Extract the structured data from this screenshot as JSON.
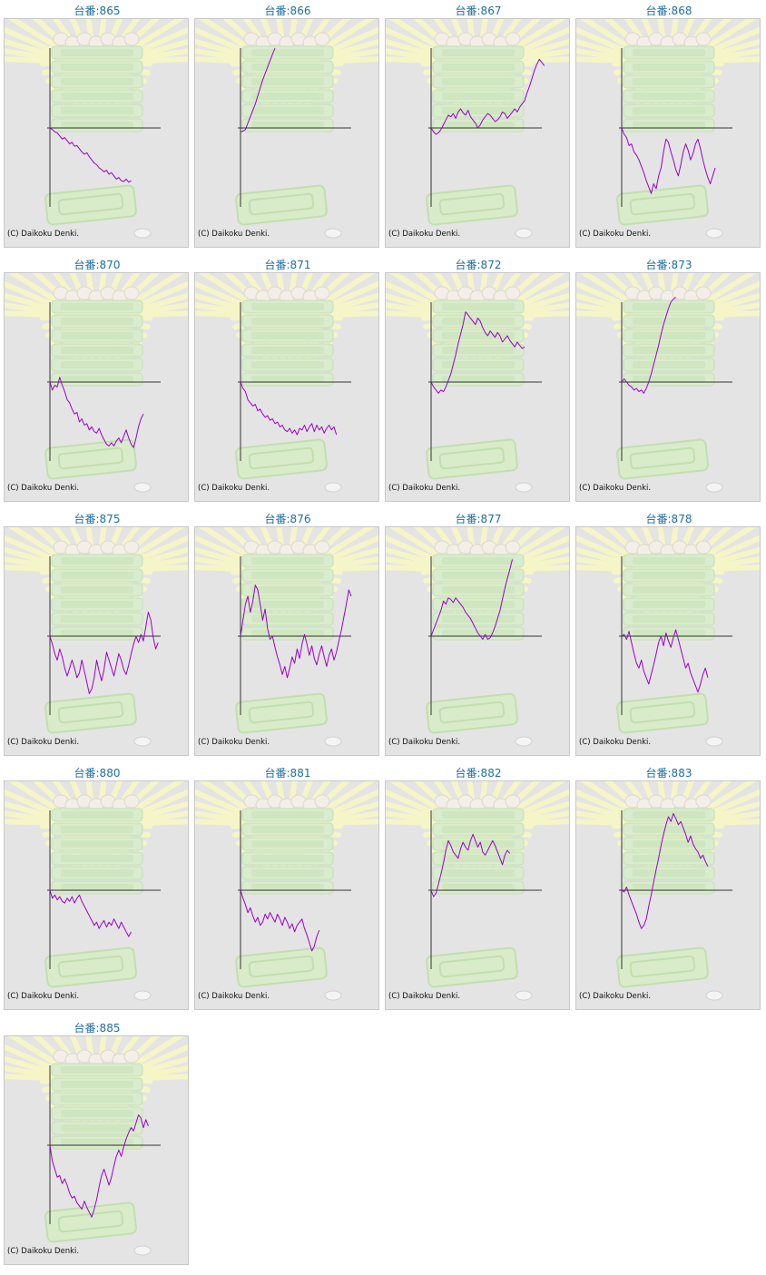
{
  "copyright": "(C) Daikoku Denki.",
  "colors": {
    "line": "#9900cc",
    "axis": "#333333",
    "title": "#1d6fa5",
    "panel": "#e4e4e4"
  },
  "chart_data": [
    {
      "type": "line",
      "title": "台番:865",
      "ylim": [
        -100,
        100
      ],
      "series": [
        {
          "values": [
            0,
            -2,
            -5,
            -6,
            -10,
            -14,
            -12,
            -16,
            -20,
            -18,
            -23,
            -22,
            -26,
            -30,
            -33,
            -31,
            -36,
            -40,
            -44,
            -46,
            -50,
            -52,
            -55,
            -53,
            -58,
            -56,
            -60,
            -64,
            -62,
            -66,
            -67,
            -64,
            -68,
            -66
          ]
        }
      ]
    },
    {
      "type": "line",
      "title": "台番:866",
      "ylim": [
        -100,
        100
      ],
      "series": [
        {
          "values": [
            -5,
            -4,
            -2,
            6,
            14,
            22,
            30,
            40,
            50,
            60,
            68,
            76,
            84,
            92,
            100
          ]
        }
      ]
    },
    {
      "type": "line",
      "title": "台番:867",
      "ylim": [
        -100,
        100
      ],
      "series": [
        {
          "values": [
            0,
            -5,
            -8,
            -6,
            -2,
            4,
            10,
            16,
            14,
            18,
            12,
            20,
            24,
            19,
            16,
            22,
            14,
            10,
            6,
            0,
            4,
            10,
            14,
            18,
            16,
            12,
            8,
            10,
            14,
            20,
            18,
            12,
            16,
            20,
            24,
            20,
            26,
            30,
            34,
            44,
            52,
            62,
            72,
            80,
            86,
            82,
            78
          ]
        }
      ]
    },
    {
      "type": "line",
      "title": "台番:868",
      "ylim": [
        -100,
        100
      ],
      "series": [
        {
          "values": [
            0,
            -8,
            -12,
            -22,
            -20,
            -30,
            -34,
            -40,
            -48,
            -56,
            -66,
            -74,
            -82,
            -70,
            -76,
            -60,
            -50,
            -30,
            -14,
            -18,
            -30,
            -40,
            -52,
            -60,
            -46,
            -30,
            -20,
            -28,
            -40,
            -32,
            -20,
            -14,
            -26,
            -40,
            -52,
            -62,
            -70,
            -60,
            -50
          ]
        }
      ]
    },
    {
      "type": "line",
      "title": "台番:870",
      "ylim": [
        -100,
        100
      ],
      "series": [
        {
          "values": [
            0,
            -10,
            -4,
            -6,
            6,
            -4,
            -12,
            -22,
            -26,
            -34,
            -40,
            -38,
            -50,
            -46,
            -54,
            -52,
            -60,
            -56,
            -62,
            -64,
            -58,
            -66,
            -72,
            -78,
            -80,
            -76,
            -80,
            -74,
            -70,
            -76,
            -68,
            -60,
            -70,
            -78,
            -82,
            -70,
            -56,
            -46,
            -40
          ]
        }
      ]
    },
    {
      "type": "line",
      "title": "台番:871",
      "ylim": [
        -100,
        100
      ],
      "series": [
        {
          "values": [
            0,
            -8,
            -12,
            -22,
            -26,
            -30,
            -28,
            -36,
            -34,
            -40,
            -44,
            -42,
            -48,
            -46,
            -52,
            -50,
            -56,
            -54,
            -60,
            -62,
            -58,
            -64,
            -60,
            -66,
            -58,
            -60,
            -54,
            -62,
            -56,
            -52,
            -62,
            -54,
            -60,
            -56,
            -64,
            -58,
            -54,
            -60,
            -56,
            -66
          ]
        }
      ]
    },
    {
      "type": "line",
      "title": "台番:872",
      "ylim": [
        -100,
        100
      ],
      "series": [
        {
          "values": [
            0,
            -6,
            -10,
            -14,
            -10,
            -12,
            -6,
            2,
            10,
            22,
            34,
            48,
            60,
            72,
            88,
            84,
            80,
            76,
            72,
            80,
            76,
            68,
            62,
            58,
            64,
            60,
            56,
            62,
            58,
            50,
            54,
            58,
            52,
            48,
            44,
            50,
            46,
            42,
            44
          ]
        }
      ]
    },
    {
      "type": "line",
      "title": "台番:873",
      "ylim": [
        -100,
        100
      ],
      "series": [
        {
          "values": [
            0,
            4,
            0,
            -4,
            -6,
            -10,
            -8,
            -12,
            -10,
            -14,
            -8,
            0,
            10,
            22,
            34,
            46,
            60,
            72,
            82,
            92,
            100,
            104,
            106
          ]
        }
      ]
    },
    {
      "type": "line",
      "title": "台番:875",
      "ylim": [
        -100,
        100
      ],
      "series": [
        {
          "values": [
            0,
            -10,
            -22,
            -30,
            -16,
            -26,
            -40,
            -50,
            -40,
            -30,
            -40,
            -52,
            -46,
            -30,
            -44,
            -58,
            -72,
            -66,
            -52,
            -30,
            -44,
            -56,
            -42,
            -20,
            -30,
            -40,
            -50,
            -36,
            -22,
            -30,
            -42,
            -48,
            -36,
            -22,
            -10,
            0,
            -8,
            2,
            -6,
            12,
            30,
            20,
            -2,
            -16,
            -8
          ]
        }
      ]
    },
    {
      "type": "line",
      "title": "台番:876",
      "ylim": [
        -100,
        100
      ],
      "series": [
        {
          "values": [
            0,
            20,
            40,
            50,
            30,
            44,
            64,
            58,
            40,
            20,
            34,
            10,
            -4,
            0,
            -14,
            -26,
            -36,
            -48,
            -38,
            -52,
            -40,
            -26,
            -34,
            -16,
            -28,
            -10,
            2,
            -10,
            -24,
            -12,
            -28,
            -36,
            -22,
            -12,
            -26,
            -38,
            -24,
            -16,
            -30,
            -20,
            -6,
            8,
            24,
            40,
            58,
            50
          ]
        }
      ]
    },
    {
      "type": "line",
      "title": "台番:877",
      "ylim": [
        -100,
        100
      ],
      "series": [
        {
          "values": [
            0,
            8,
            16,
            24,
            32,
            44,
            40,
            48,
            46,
            42,
            48,
            44,
            40,
            36,
            30,
            26,
            22,
            16,
            10,
            4,
            0,
            -4,
            2,
            -4,
            -2,
            4,
            12,
            22,
            32,
            46,
            60,
            72,
            84,
            96
          ]
        }
      ]
    },
    {
      "type": "line",
      "title": "台番:878",
      "ylim": [
        -100,
        100
      ],
      "series": [
        {
          "values": [
            0,
            2,
            -4,
            6,
            -8,
            -22,
            -34,
            -40,
            -30,
            -44,
            -52,
            -60,
            -48,
            -36,
            -22,
            -8,
            0,
            -12,
            4,
            -6,
            -14,
            -2,
            8,
            -4,
            -16,
            -28,
            -40,
            -34,
            -46,
            -54,
            -62,
            -70,
            -60,
            -48,
            -40,
            -52
          ]
        }
      ]
    },
    {
      "type": "line",
      "title": "台番:880",
      "ylim": [
        -100,
        100
      ],
      "series": [
        {
          "values": [
            0,
            -10,
            -6,
            -12,
            -8,
            -14,
            -16,
            -10,
            -14,
            -8,
            -16,
            -10,
            -6,
            -14,
            -20,
            -26,
            -32,
            -38,
            -44,
            -40,
            -48,
            -42,
            -38,
            -46,
            -40,
            -44,
            -36,
            -42,
            -48,
            -40,
            -46,
            -52,
            -58,
            -52
          ]
        }
      ]
    },
    {
      "type": "line",
      "title": "台番:881",
      "ylim": [
        -100,
        100
      ],
      "series": [
        {
          "values": [
            0,
            -10,
            -18,
            -28,
            -22,
            -32,
            -40,
            -34,
            -44,
            -40,
            -30,
            -36,
            -28,
            -34,
            -40,
            -30,
            -36,
            -44,
            -34,
            -40,
            -48,
            -42,
            -52,
            -44,
            -40,
            -36,
            -48,
            -56,
            -66,
            -76,
            -70,
            -58,
            -50
          ]
        }
      ]
    },
    {
      "type": "line",
      "title": "台番:882",
      "ylim": [
        -100,
        100
      ],
      "series": [
        {
          "values": [
            0,
            -8,
            -4,
            8,
            20,
            34,
            50,
            62,
            56,
            48,
            44,
            40,
            52,
            60,
            54,
            50,
            62,
            70,
            62,
            54,
            60,
            48,
            44,
            50,
            56,
            62,
            56,
            48,
            40,
            32,
            44,
            50,
            46
          ]
        }
      ]
    },
    {
      "type": "line",
      "title": "台番:883",
      "ylim": [
        -100,
        100
      ],
      "series": [
        {
          "values": [
            0,
            -2,
            4,
            -6,
            -14,
            -22,
            -30,
            -40,
            -48,
            -44,
            -36,
            -20,
            -6,
            10,
            26,
            40,
            56,
            70,
            82,
            92,
            86,
            96,
            90,
            82,
            86,
            78,
            70,
            60,
            68,
            58,
            52,
            48,
            40,
            44,
            36,
            30
          ]
        }
      ]
    },
    {
      "type": "line",
      "title": "台番:885",
      "ylim": [
        -100,
        100
      ],
      "series": [
        {
          "values": [
            0,
            -20,
            -30,
            -40,
            -38,
            -48,
            -42,
            -50,
            -60,
            -66,
            -64,
            -72,
            -76,
            -80,
            -70,
            -78,
            -84,
            -90,
            -80,
            -68,
            -52,
            -38,
            -30,
            -40,
            -50,
            -40,
            -26,
            -14,
            -6,
            -14,
            -2,
            8,
            16,
            22,
            18,
            28,
            38,
            34,
            22,
            32,
            24
          ]
        }
      ]
    }
  ]
}
